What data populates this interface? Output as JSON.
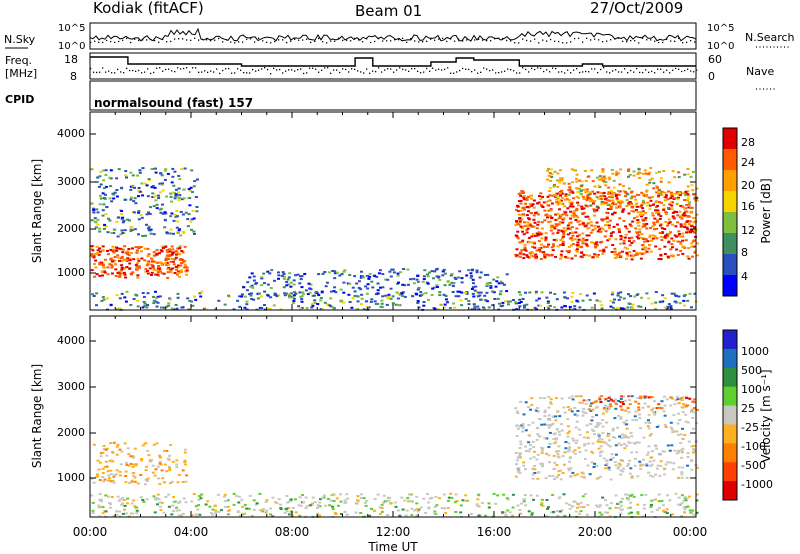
{
  "header": {
    "station": "Kodiak (fitACF)",
    "beam": "Beam 01",
    "date": "27/Oct/2009"
  },
  "noise_panel": {
    "left_label": "N.Sky",
    "left_ticks": [
      "10^5",
      "10^0"
    ],
    "right_label": "N.Search",
    "right_ticks": [
      "10^5",
      "10^0"
    ]
  },
  "freq_panel": {
    "left_label_1": "Freq.",
    "left_label_2": "[MHz]",
    "left_ticks": [
      "18",
      "8"
    ],
    "right_label": "Nave",
    "right_ticks": [
      "60",
      "0"
    ]
  },
  "cpid": {
    "label": "CPID",
    "value": "normalsound (fast) 157"
  },
  "axes": {
    "ylabel": "Slant Range [km]",
    "yticks": [
      "4000",
      "3000",
      "2000",
      "1000"
    ],
    "xticks": [
      "00:00",
      "04:00",
      "08:00",
      "12:00",
      "16:00",
      "20:00",
      "00:00"
    ],
    "xlabel": "Time UT"
  },
  "colorbars": {
    "power": {
      "label": "Power [dB]",
      "ticks": [
        "28",
        "24",
        "20",
        "16",
        "12",
        "8",
        "4"
      ],
      "colors": [
        "#e00000",
        "#ff5a00",
        "#ffa000",
        "#f5d400",
        "#7fbf3f",
        "#3f8f5f",
        "#2a4fbf",
        "#0000ff"
      ]
    },
    "velocity": {
      "label": "Velocity [m s⁻¹]",
      "ticks": [
        "1000",
        "500",
        "100",
        "25",
        "-25",
        "-100",
        "-500",
        "-1000"
      ],
      "colors": [
        "#2222cc",
        "#1f6fbf",
        "#2f8f3f",
        "#5fcf2f",
        "#c8c8c0",
        "#ffb020",
        "#ff8000",
        "#ff4000",
        "#e00000"
      ]
    }
  },
  "chart_data": [
    {
      "type": "heatmap",
      "name": "Power",
      "x_range_hours": [
        0,
        24
      ],
      "ylim_km": [
        180,
        4500
      ],
      "colorbar_range_db": [
        0,
        32
      ],
      "regions": [
        {
          "t": [
            0.0,
            3.8
          ],
          "r": [
            900,
            1600
          ],
          "level": "high"
        },
        {
          "t": [
            0.0,
            4.2
          ],
          "r": [
            1800,
            3300
          ],
          "level": "low-mid"
        },
        {
          "t": [
            0.0,
            24.0
          ],
          "r": [
            200,
            600
          ],
          "level": "low-mid"
        },
        {
          "t": [
            6.0,
            16.5
          ],
          "r": [
            500,
            1100
          ],
          "level": "low"
        },
        {
          "t": [
            16.8,
            24.0
          ],
          "r": [
            1300,
            2800
          ],
          "level": "high"
        },
        {
          "t": [
            18.0,
            24.0
          ],
          "r": [
            2400,
            3300
          ],
          "level": "mid-high"
        }
      ]
    },
    {
      "type": "heatmap",
      "name": "Velocity",
      "x_range_hours": [
        0,
        24
      ],
      "ylim_km": [
        180,
        4500
      ],
      "colorbar_range_ms": [
        -1000,
        1000
      ],
      "regions": [
        {
          "t": [
            0.0,
            3.8
          ],
          "r": [
            900,
            1800
          ],
          "level": "-100 to -25"
        },
        {
          "t": [
            0.0,
            24.0
          ],
          "r": [
            200,
            700
          ],
          "level": "-25 to 100"
        },
        {
          "t": [
            16.8,
            24.0
          ],
          "r": [
            1000,
            2800
          ],
          "level": "-25 to 25"
        },
        {
          "t": [
            19.5,
            24.0
          ],
          "r": [
            2500,
            2800
          ],
          "level": "-500 to -100"
        }
      ]
    }
  ]
}
